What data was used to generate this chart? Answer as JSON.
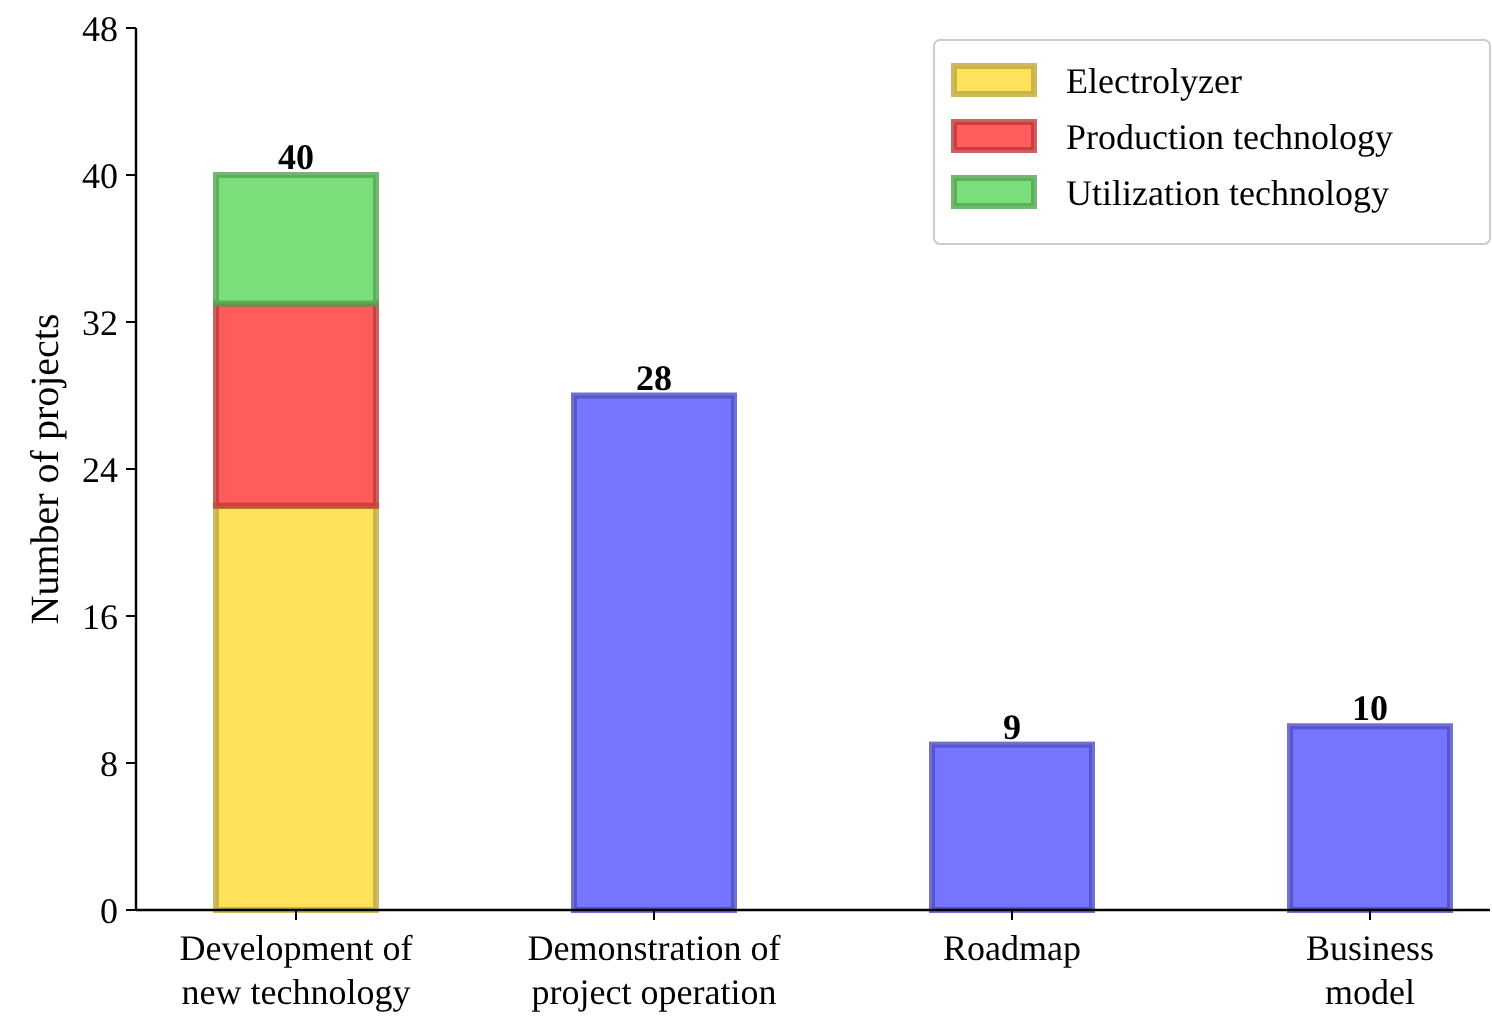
{
  "chart_data": {
    "type": "bar",
    "stacked": true,
    "ylabel": "Number of projects",
    "categories": [
      "Development of new technology",
      "Demonstration of project operation",
      "Roadmap",
      "Business model"
    ],
    "series": [
      {
        "name": "Electrolyzer",
        "color": "#ffdf4a",
        "values": [
          22,
          null,
          null,
          null
        ]
      },
      {
        "name": "Production technology",
        "color": "#ff4b4b",
        "values": [
          11,
          null,
          null,
          null
        ]
      },
      {
        "name": "Utilization technology",
        "color": "#6cdc6c",
        "values": [
          7,
          null,
          null,
          null
        ]
      },
      {
        "color": "#6666ff",
        "values": [
          null,
          28,
          9,
          10
        ]
      }
    ],
    "totals": [
      "40",
      "28",
      "9",
      "10"
    ],
    "ylim": [
      0,
      48
    ],
    "yticks": [
      0,
      8,
      16,
      24,
      32,
      40,
      48
    ],
    "grid": false,
    "legend": "top right"
  }
}
